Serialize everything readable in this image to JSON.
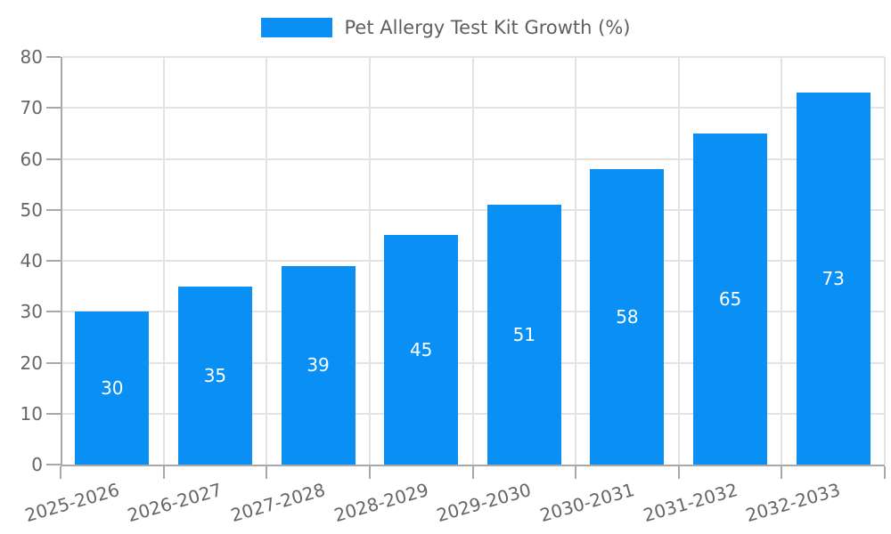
{
  "chart_data": {
    "type": "bar",
    "title": "",
    "legend_label": "Pet Allergy Test Kit Growth (%)",
    "categories": [
      "2025-2026",
      "2026-2027",
      "2027-2028",
      "2028-2029",
      "2029-2030",
      "2030-2031",
      "2031-2032",
      "2032-2033"
    ],
    "values": [
      30,
      35,
      39,
      45,
      51,
      58,
      65,
      73
    ],
    "value_labels": [
      "30",
      "35",
      "39",
      "45",
      "51",
      "58",
      "65",
      "73"
    ],
    "xlabel": "",
    "ylabel": "",
    "ylim": [
      0,
      80
    ],
    "yticks": [
      0,
      10,
      20,
      30,
      40,
      50,
      60,
      70,
      80
    ],
    "grid": true,
    "legend_position": "top-center",
    "xtick_rotation_deg": -16,
    "colors": {
      "bar": "#0A90F5",
      "value_label": "#FFFFFF",
      "axis": "#A8A8A8",
      "grid": "#E3E3E3",
      "tick_label": "#666666",
      "legend_text": "#5F5F5F",
      "background": "#FFFFFF"
    }
  }
}
